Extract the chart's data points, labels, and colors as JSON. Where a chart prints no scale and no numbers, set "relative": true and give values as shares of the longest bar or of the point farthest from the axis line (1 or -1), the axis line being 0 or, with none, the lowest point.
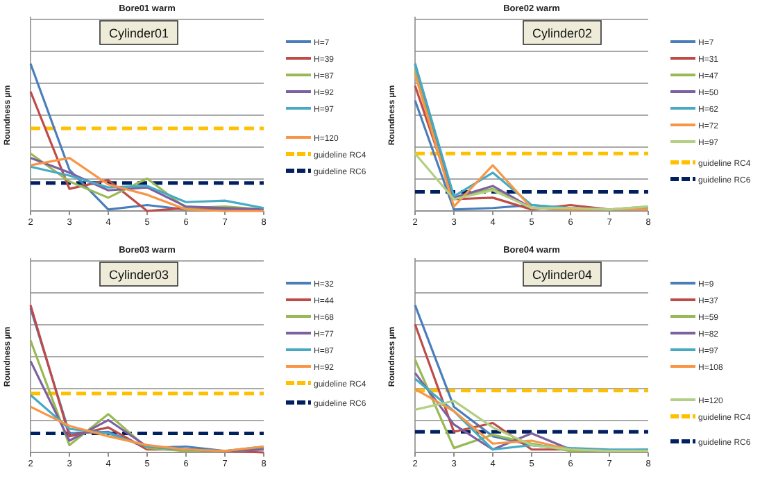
{
  "chart_data": [
    {
      "type": "line",
      "title": "Bore01 warm",
      "ylabel": "Roundness µm",
      "annotations": [
        "Cylinder01"
      ],
      "relative": true,
      "x": [
        2,
        3,
        4,
        5,
        6,
        7,
        8
      ],
      "xlim": [
        2,
        8
      ],
      "xticks": [
        2,
        3,
        4,
        5,
        6,
        7,
        8
      ],
      "grid": "y",
      "legend": "right",
      "marker": "none",
      "line_style": "solid",
      "series": [
        {
          "name": "H=7",
          "color": "#4a7ebb",
          "values": [
            1,
            0.28,
            0.01,
            0.04,
            0.01,
            0.01,
            0.01
          ]
        },
        {
          "name": "H=39",
          "color": "#be4b48",
          "values": [
            0.81,
            0.15,
            0.21,
            0,
            0.02,
            0.02,
            0
          ]
        },
        {
          "name": "H=87",
          "color": "#98b954",
          "values": [
            0.39,
            0.2,
            0.09,
            0.22,
            0.02,
            0.03,
            0.01
          ]
        },
        {
          "name": "H=92",
          "color": "#7d60a0",
          "values": [
            0.36,
            0.26,
            0.14,
            0.16,
            0.03,
            0.02,
            0.01
          ]
        },
        {
          "name": "H=97",
          "color": "#46aac5",
          "values": [
            0.3,
            0.24,
            0.16,
            0.17,
            0.06,
            0.07,
            0.02
          ]
        },
        {
          "name": "H=120",
          "color": "#f79646",
          "values": [
            0.31,
            0.36,
            0.18,
            0.11,
            0.01,
            0,
            0
          ]
        }
      ],
      "ref_lines": [
        {
          "axis": "y",
          "value": 0.56,
          "label": "guideline RC4",
          "color": "#ffc000",
          "line_style": "dashed"
        },
        {
          "axis": "y",
          "value": 0.19,
          "label": "guideline RC6",
          "color": "#002060",
          "line_style": "dashed"
        }
      ]
    },
    {
      "type": "line",
      "title": "Bore02 warm",
      "ylabel": "Roundness µm",
      "annotations": [
        "Cylinder02"
      ],
      "relative": true,
      "x": [
        2,
        3,
        4,
        5,
        6,
        7,
        8
      ],
      "xlim": [
        2,
        8
      ],
      "xticks": [
        2,
        3,
        4,
        5,
        6,
        7,
        8
      ],
      "grid": "y",
      "legend": "right",
      "marker": "none",
      "line_style": "solid",
      "series": [
        {
          "name": "H=7",
          "color": "#4a7ebb",
          "values": [
            0.75,
            0.01,
            0.02,
            0.04,
            0.02,
            0.01,
            0.01
          ]
        },
        {
          "name": "H=31",
          "color": "#be4b48",
          "values": [
            0.85,
            0.08,
            0.09,
            0.01,
            0.04,
            0.01,
            0.02
          ]
        },
        {
          "name": "H=47",
          "color": "#98b954",
          "values": [
            0.96,
            0.09,
            0.15,
            0.02,
            0.01,
            0.01,
            0.03
          ]
        },
        {
          "name": "H=50",
          "color": "#7d60a0",
          "values": [
            1,
            0.09,
            0.17,
            0.02,
            0.01,
            0.01,
            0.02
          ]
        },
        {
          "name": "H=62",
          "color": "#46aac5",
          "values": [
            1,
            0.1,
            0.26,
            0.04,
            0.02,
            0.01,
            0.02
          ]
        },
        {
          "name": "H=72",
          "color": "#f79646",
          "values": [
            0.93,
            0.03,
            0.31,
            0.02,
            0.01,
            0.01,
            0.01
          ]
        },
        {
          "name": "H=97",
          "color": "#b3cf85",
          "values": [
            0.39,
            0.08,
            0.14,
            0.02,
            0.02,
            0.01,
            0.03
          ]
        }
      ],
      "ref_lines": [
        {
          "axis": "y",
          "value": 0.39,
          "label": "guideline RC4",
          "color": "#ffc000",
          "line_style": "dashed"
        },
        {
          "axis": "y",
          "value": 0.13,
          "label": "guideline RC6",
          "color": "#002060",
          "line_style": "dashed"
        }
      ]
    },
    {
      "type": "line",
      "title": "Bore03 warm",
      "ylabel": "Roundness µm",
      "annotations": [
        "Cylinder03"
      ],
      "relative": true,
      "x": [
        2,
        3,
        4,
        5,
        6,
        7,
        8
      ],
      "xlim": [
        2,
        8
      ],
      "xticks": [
        2,
        3,
        4,
        5,
        6,
        7,
        8
      ],
      "grid": "y",
      "legend": "right",
      "marker": "none",
      "line_style": "solid",
      "series": [
        {
          "name": "H=32",
          "color": "#4a7ebb",
          "values": [
            0.98,
            0.13,
            0.14,
            0.03,
            0.04,
            0.01,
            0.03
          ]
        },
        {
          "name": "H=44",
          "color": "#be4b48",
          "values": [
            1,
            0.11,
            0.17,
            0.02,
            0.02,
            0.01,
            0
          ]
        },
        {
          "name": "H=68",
          "color": "#98b954",
          "values": [
            0.76,
            0.05,
            0.26,
            0.03,
            0.01,
            0.01,
            0.02
          ]
        },
        {
          "name": "H=77",
          "color": "#7d60a0",
          "values": [
            0.62,
            0.08,
            0.22,
            0.04,
            0.02,
            0.01,
            0.02
          ]
        },
        {
          "name": "H=87",
          "color": "#46aac5",
          "values": [
            0.39,
            0.16,
            0.13,
            0.04,
            0.02,
            0.01,
            0.04
          ]
        },
        {
          "name": "H=92",
          "color": "#f79646",
          "values": [
            0.31,
            0.18,
            0.11,
            0.05,
            0.02,
            0.01,
            0.04
          ]
        }
      ],
      "ref_lines": [
        {
          "axis": "y",
          "value": 0.4,
          "label": "guideline RC4",
          "color": "#ffc000",
          "line_style": "dashed"
        },
        {
          "axis": "y",
          "value": 0.13,
          "label": "guideline RC6",
          "color": "#002060",
          "line_style": "dashed"
        }
      ]
    },
    {
      "type": "line",
      "title": "Bore04 warm",
      "ylabel": "Roundness µm",
      "annotations": [
        "Cylinder04"
      ],
      "relative": true,
      "x": [
        2,
        3,
        4,
        5,
        6,
        7,
        8
      ],
      "xlim": [
        2,
        8
      ],
      "xticks": [
        2,
        3,
        4,
        5,
        6,
        7,
        8
      ],
      "grid": "y",
      "legend": "right",
      "marker": "none",
      "line_style": "solid",
      "series": [
        {
          "name": "H=9",
          "color": "#4a7ebb",
          "values": [
            1,
            0.31,
            0.11,
            0.05,
            0.02,
            0.01,
            0.01
          ]
        },
        {
          "name": "H=37",
          "color": "#be4b48",
          "values": [
            0.87,
            0.14,
            0.2,
            0.02,
            0.02,
            0.01,
            0.01
          ]
        },
        {
          "name": "H=59",
          "color": "#98b954",
          "values": [
            0.63,
            0.03,
            0.12,
            0.06,
            0.01,
            0.01,
            0.02
          ]
        },
        {
          "name": "H=82",
          "color": "#7d60a0",
          "values": [
            0.54,
            0.19,
            0.02,
            0.13,
            0.02,
            0.01,
            0.01
          ]
        },
        {
          "name": "H=97",
          "color": "#46aac5",
          "values": [
            0.5,
            0.28,
            0.02,
            0.05,
            0.03,
            0.02,
            0.02
          ]
        },
        {
          "name": "H=108",
          "color": "#f79646",
          "values": [
            0.43,
            0.28,
            0.06,
            0.08,
            0.02,
            0.01,
            0.01
          ]
        },
        {
          "name": "H=120",
          "color": "#b3cf85",
          "values": [
            0.29,
            0.35,
            0.17,
            0.05,
            0.02,
            0.01,
            0.01
          ]
        }
      ],
      "ref_lines": [
        {
          "axis": "y",
          "value": 0.42,
          "label": "guideline RC4",
          "color": "#ffc000",
          "line_style": "dashed"
        },
        {
          "axis": "y",
          "value": 0.14,
          "label": "guideline RC6",
          "color": "#002060",
          "line_style": "dashed"
        }
      ]
    }
  ]
}
